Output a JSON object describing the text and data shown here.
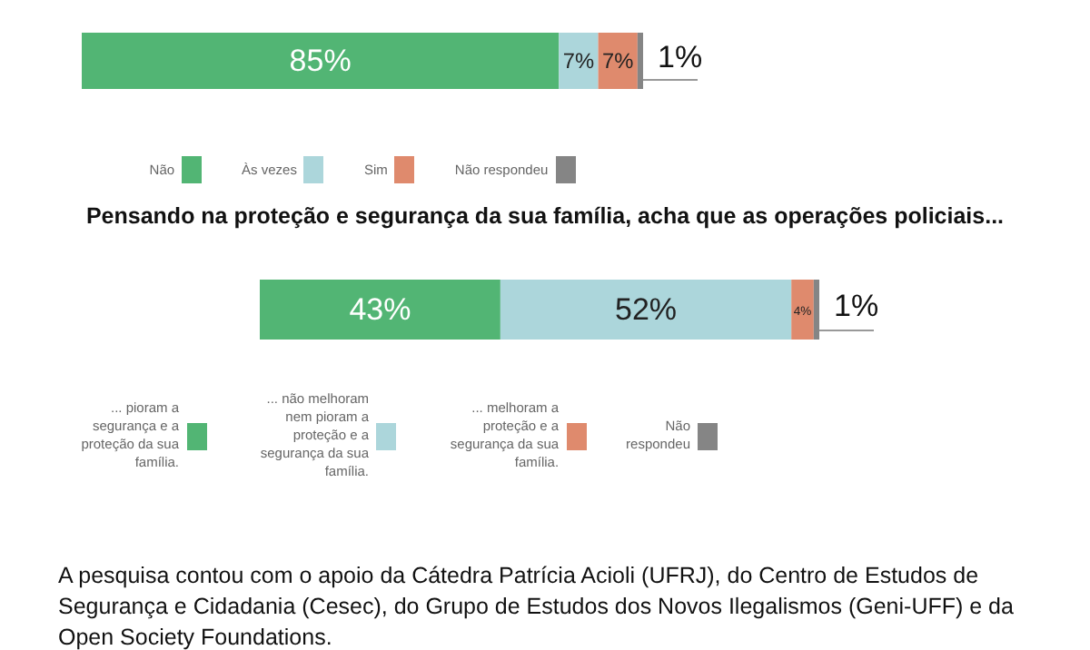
{
  "chart_data": [
    {
      "type": "bar",
      "orientation": "horizontal",
      "stacked": true,
      "categories": [
        null
      ],
      "legend": "bottom",
      "series": [
        {
          "name": "Não",
          "color": "#52b574",
          "values": [
            85
          ],
          "value_labels": [
            "85%"
          ]
        },
        {
          "name": "Às vezes",
          "color": "#acd6db",
          "values": [
            7
          ],
          "value_labels": [
            "7%"
          ]
        },
        {
          "name": "Sim",
          "color": "#df8a6d",
          "values": [
            7
          ],
          "value_labels": [
            "7%"
          ]
        },
        {
          "name": "Não respondeu",
          "color": "#858585",
          "values": [
            1
          ],
          "value_labels": [
            "1%"
          ]
        }
      ]
    },
    {
      "type": "bar",
      "orientation": "horizontal",
      "stacked": true,
      "title": "Pensando na proteção e segurança da sua família, acha que as operações policiais...",
      "categories": [
        null
      ],
      "legend": "bottom",
      "annotations": [
        "A pesquisa contou com o apoio da Cátedra Patrícia Acioli (UFRJ), do Centro de Estudos de Segurança e Cidadania (Cesec), do Grupo de Estudos dos Novos Ilegalismos (Geni-UFF) e da Open Society Foundations."
      ],
      "series": [
        {
          "name": "... pioram a segurança e a proteção da sua família.",
          "color": "#52b574",
          "values": [
            43
          ],
          "value_labels": [
            "43%"
          ]
        },
        {
          "name": "... não melhoram nem pioram a proteção e a segurança da sua família.",
          "color": "#acd6db",
          "values": [
            52
          ],
          "value_labels": [
            "52%"
          ]
        },
        {
          "name": "... melhoram a proteção e a segurança da sua família.",
          "color": "#df8a6d",
          "values": [
            4
          ],
          "value_labels": [
            "4%"
          ]
        },
        {
          "name": "Não respondeu",
          "color": "#858585",
          "values": [
            1
          ],
          "value_labels": [
            "1%"
          ]
        }
      ]
    }
  ]
}
